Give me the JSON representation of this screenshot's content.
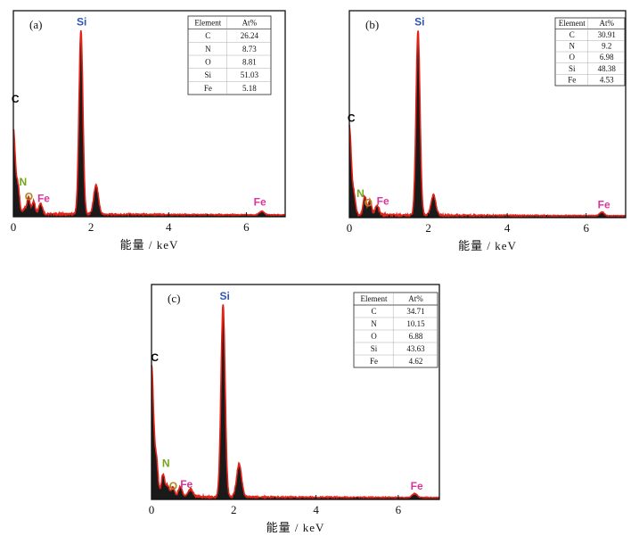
{
  "chart_data": [
    {
      "type": "line",
      "panel_label": "(a)",
      "xlabel": "能量 / keV",
      "xlim": [
        0,
        7
      ],
      "xticks": [
        0,
        2,
        4,
        6
      ],
      "peaks": [
        {
          "x": 0.0,
          "y": 46,
          "w": 0.05
        },
        {
          "x": 0.12,
          "y": 14,
          "w": 0.04
        },
        {
          "x": 0.28,
          "y": 3,
          "w": 0.04
        },
        {
          "x": 0.39,
          "y": 9,
          "w": 0.04
        },
        {
          "x": 0.52,
          "y": 7,
          "w": 0.04
        },
        {
          "x": 0.7,
          "y": 6,
          "w": 0.05
        },
        {
          "x": 1.74,
          "y": 100,
          "w": 0.05
        },
        {
          "x": 2.13,
          "y": 16,
          "w": 0.06
        },
        {
          "x": 6.4,
          "y": 2,
          "w": 0.06
        }
      ],
      "peak_labels": [
        {
          "text": "C",
          "x": 0.05,
          "y": 62,
          "color": "#000000"
        },
        {
          "text": "Si",
          "x": 1.76,
          "y": 104,
          "color": "#2f55b5"
        },
        {
          "text": "N",
          "x": 0.25,
          "y": 17,
          "color": "#74a51b"
        },
        {
          "text": "O",
          "x": 0.4,
          "y": 9,
          "color": "#a88a1e"
        },
        {
          "text": "Fe",
          "x": 0.78,
          "y": 8,
          "color": "#d8359a"
        },
        {
          "text": "Fe",
          "x": 6.35,
          "y": 6,
          "color": "#d8359a"
        }
      ],
      "table": {
        "header": [
          "Element",
          "At%"
        ],
        "rows": [
          [
            "C",
            "26.24"
          ],
          [
            "N",
            "8.73"
          ],
          [
            "O",
            "8.81"
          ],
          [
            "Si",
            "51.03"
          ],
          [
            "Fe",
            "5.18"
          ]
        ]
      }
    },
    {
      "type": "line",
      "panel_label": "(b)",
      "xlabel": "能量 / keV",
      "xlim": [
        0,
        7
      ],
      "xticks": [
        0,
        2,
        4,
        6
      ],
      "peaks": [
        {
          "x": 0.0,
          "y": 48,
          "w": 0.05
        },
        {
          "x": 0.12,
          "y": 10,
          "w": 0.04
        },
        {
          "x": 0.39,
          "y": 10,
          "w": 0.04
        },
        {
          "x": 0.52,
          "y": 8,
          "w": 0.04
        },
        {
          "x": 0.7,
          "y": 5,
          "w": 0.05
        },
        {
          "x": 1.74,
          "y": 100,
          "w": 0.05
        },
        {
          "x": 2.13,
          "y": 11,
          "w": 0.06
        },
        {
          "x": 6.4,
          "y": 2,
          "w": 0.06
        }
      ],
      "peak_labels": [
        {
          "text": "C",
          "x": 0.05,
          "y": 52,
          "color": "#000000"
        },
        {
          "text": "Si",
          "x": 1.78,
          "y": 104,
          "color": "#2f55b5"
        },
        {
          "text": "N",
          "x": 0.28,
          "y": 11,
          "color": "#74a51b"
        },
        {
          "text": "O",
          "x": 0.48,
          "y": 6,
          "color": "#a88a1e"
        },
        {
          "text": "Fe",
          "x": 0.85,
          "y": 7,
          "color": "#d8359a"
        },
        {
          "text": "Fe",
          "x": 6.45,
          "y": 5,
          "color": "#d8359a"
        }
      ],
      "table": {
        "header": [
          "Element",
          "At%"
        ],
        "rows": [
          [
            "C",
            "30.91"
          ],
          [
            "N",
            "9.2"
          ],
          [
            "O",
            "6.98"
          ],
          [
            "Si",
            "48.38"
          ],
          [
            "Fe",
            "4.53"
          ]
        ]
      }
    },
    {
      "type": "line",
      "panel_label": "(c)",
      "xlabel": "能量 / keV",
      "xlim": [
        0,
        7
      ],
      "xticks": [
        0,
        2,
        4,
        6
      ],
      "peaks": [
        {
          "x": 0.0,
          "y": 68,
          "w": 0.05
        },
        {
          "x": 0.12,
          "y": 18,
          "w": 0.04
        },
        {
          "x": 0.28,
          "y": 12,
          "w": 0.04
        },
        {
          "x": 0.39,
          "y": 6,
          "w": 0.04
        },
        {
          "x": 0.52,
          "y": 5,
          "w": 0.04
        },
        {
          "x": 0.7,
          "y": 5,
          "w": 0.05
        },
        {
          "x": 0.95,
          "y": 4,
          "w": 0.06
        },
        {
          "x": 1.74,
          "y": 100,
          "w": 0.05
        },
        {
          "x": 2.13,
          "y": 17,
          "w": 0.06
        },
        {
          "x": 6.4,
          "y": 2,
          "w": 0.06
        }
      ],
      "peak_labels": [
        {
          "text": "C",
          "x": 0.08,
          "y": 72,
          "color": "#000000"
        },
        {
          "text": "Si",
          "x": 1.78,
          "y": 104,
          "color": "#2f55b5"
        },
        {
          "text": "N",
          "x": 0.35,
          "y": 17,
          "color": "#74a51b"
        },
        {
          "text": "O",
          "x": 0.53,
          "y": 5,
          "color": "#a88a1e"
        },
        {
          "text": "Fe",
          "x": 0.85,
          "y": 6,
          "color": "#d8359a"
        },
        {
          "text": "Fe",
          "x": 6.45,
          "y": 5,
          "color": "#d8359a"
        }
      ],
      "table": {
        "header": [
          "Element",
          "At%"
        ],
        "rows": [
          [
            "C",
            "34.71"
          ],
          [
            "N",
            "10.15"
          ],
          [
            "O",
            "6.88"
          ],
          [
            "Si",
            "43.63"
          ],
          [
            "Fe",
            "4.62"
          ]
        ]
      }
    }
  ]
}
